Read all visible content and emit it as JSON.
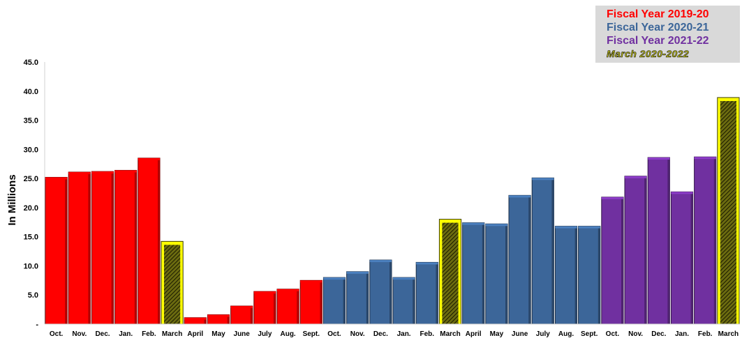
{
  "chart_data": {
    "type": "bar",
    "title": "",
    "xlabel": "",
    "ylabel": "In Millions",
    "ylim": [
      0,
      45
    ],
    "yticks": [
      "-",
      "5.0",
      "10.0",
      "15.0",
      "20.0",
      "25.0",
      "30.0",
      "35.0",
      "40.0",
      "45.0"
    ],
    "grid": false,
    "legend_position": "top-right",
    "categories": [
      "Oct.",
      "Nov.",
      "Dec.",
      "Jan.",
      "Feb.",
      "March",
      "April",
      "May",
      "June",
      "July",
      "Aug.",
      "Sept.",
      "Oct.",
      "Nov.",
      "Dec.",
      "Jan.",
      "Feb.",
      "March",
      "April",
      "May",
      "June",
      "July",
      "Aug.",
      "Sept.",
      "Oct.",
      "Nov.",
      "Dec.",
      "Jan.",
      "Feb.",
      "March"
    ],
    "values": [
      25.2,
      26.1,
      26.2,
      26.4,
      28.5,
      14.2,
      1.1,
      1.6,
      3.1,
      5.6,
      6.0,
      7.5,
      8.0,
      9.0,
      11.0,
      8.0,
      10.6,
      18.0,
      17.4,
      17.2,
      22.1,
      25.1,
      16.8,
      16.8,
      21.8,
      25.4,
      28.6,
      22.7,
      28.7,
      38.9
    ],
    "bar_series": [
      0,
      0,
      0,
      0,
      0,
      3,
      0,
      0,
      0,
      0,
      0,
      0,
      1,
      1,
      1,
      1,
      1,
      3,
      1,
      1,
      1,
      1,
      1,
      1,
      2,
      2,
      2,
      2,
      2,
      3
    ],
    "series": [
      {
        "name": "Fiscal Year 2019-20",
        "color": "#ff0000"
      },
      {
        "name": "Fiscal Year 2020-21",
        "color": "#3c6699"
      },
      {
        "name": "Fiscal Year 2021-22",
        "color": "#7030a0"
      },
      {
        "name": "March 2020-2022",
        "color": "#ffff00"
      }
    ]
  },
  "legend": {
    "fy2019": "Fiscal Year 2019-20",
    "fy2020": "Fiscal Year 2020-21",
    "fy2021": "Fiscal Year 2021-22",
    "march": "March 2020-2022"
  }
}
